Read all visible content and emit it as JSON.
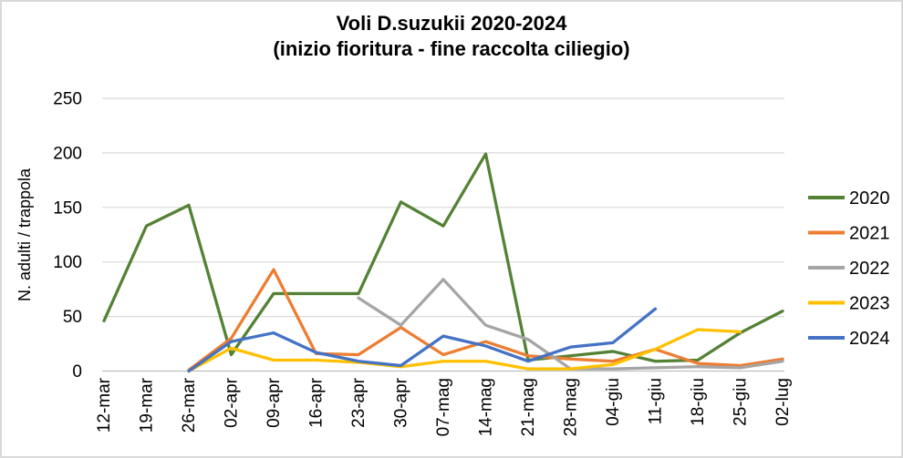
{
  "frame": {
    "background": "#FFFFFF",
    "border_color": "#D9D9D9"
  },
  "title": {
    "line1": "Voli D.suzukii 2020-2024",
    "line2": "(inizio fioritura - fine raccolta ciliegio)"
  },
  "y_axis_title": "N. adulti / trappola",
  "legend": {
    "position": "right",
    "items": [
      {
        "label": "2020",
        "color": "#548235"
      },
      {
        "label": "2021",
        "color": "#ED7D31"
      },
      {
        "label": "2022",
        "color": "#A5A5A5"
      },
      {
        "label": "2023",
        "color": "#FFC000"
      },
      {
        "label": "2024",
        "color": "#4472C4"
      }
    ]
  },
  "colors": {
    "gridline": "#D9D9D9",
    "axis_line": "#BFBFBF",
    "text": "#000000"
  },
  "chart_data": {
    "type": "line",
    "title": "Voli D.suzukii 2020-2024",
    "subtitle": "(inizio fioritura - fine raccolta ciliegio)",
    "xlabel": "",
    "ylabel": "N. adulti / trappola",
    "ylim": [
      0,
      250
    ],
    "y_ticks": [
      0,
      50,
      100,
      150,
      200,
      250
    ],
    "grid": "horizontal",
    "legend_position": "right",
    "categories": [
      "12-mar",
      "19-mar",
      "26-mar",
      "02-apr",
      "09-apr",
      "16-apr",
      "23-apr",
      "30-apr",
      "07-mag",
      "14-mag",
      "21-mag",
      "28-mag",
      "04-giu",
      "11-giu",
      "18-giu",
      "25-giu",
      "02-lug"
    ],
    "series": [
      {
        "name": "2020",
        "color": "#548235",
        "values": [
          46,
          133,
          152,
          15,
          71,
          71,
          71,
          155,
          133,
          199,
          10,
          14,
          18,
          9,
          10,
          35,
          55
        ]
      },
      {
        "name": "2021",
        "color": "#ED7D31",
        "values": [
          null,
          null,
          1,
          30,
          93,
          16,
          15,
          40,
          15,
          27,
          14,
          11,
          9,
          20,
          7,
          5,
          11
        ]
      },
      {
        "name": "2022",
        "color": "#A5A5A5",
        "values": [
          null,
          null,
          null,
          null,
          null,
          null,
          67,
          42,
          84,
          42,
          29,
          2,
          2,
          3,
          4,
          3,
          9
        ]
      },
      {
        "name": "2023",
        "color": "#FFC000",
        "values": [
          null,
          null,
          0,
          21,
          10,
          10,
          8,
          4,
          9,
          9,
          2,
          2,
          6,
          20,
          38,
          36,
          null
        ]
      },
      {
        "name": "2024",
        "color": "#4472C4",
        "values": [
          null,
          null,
          0,
          27,
          35,
          17,
          9,
          5,
          32,
          23,
          9,
          22,
          26,
          57,
          null,
          null,
          null
        ]
      }
    ]
  }
}
